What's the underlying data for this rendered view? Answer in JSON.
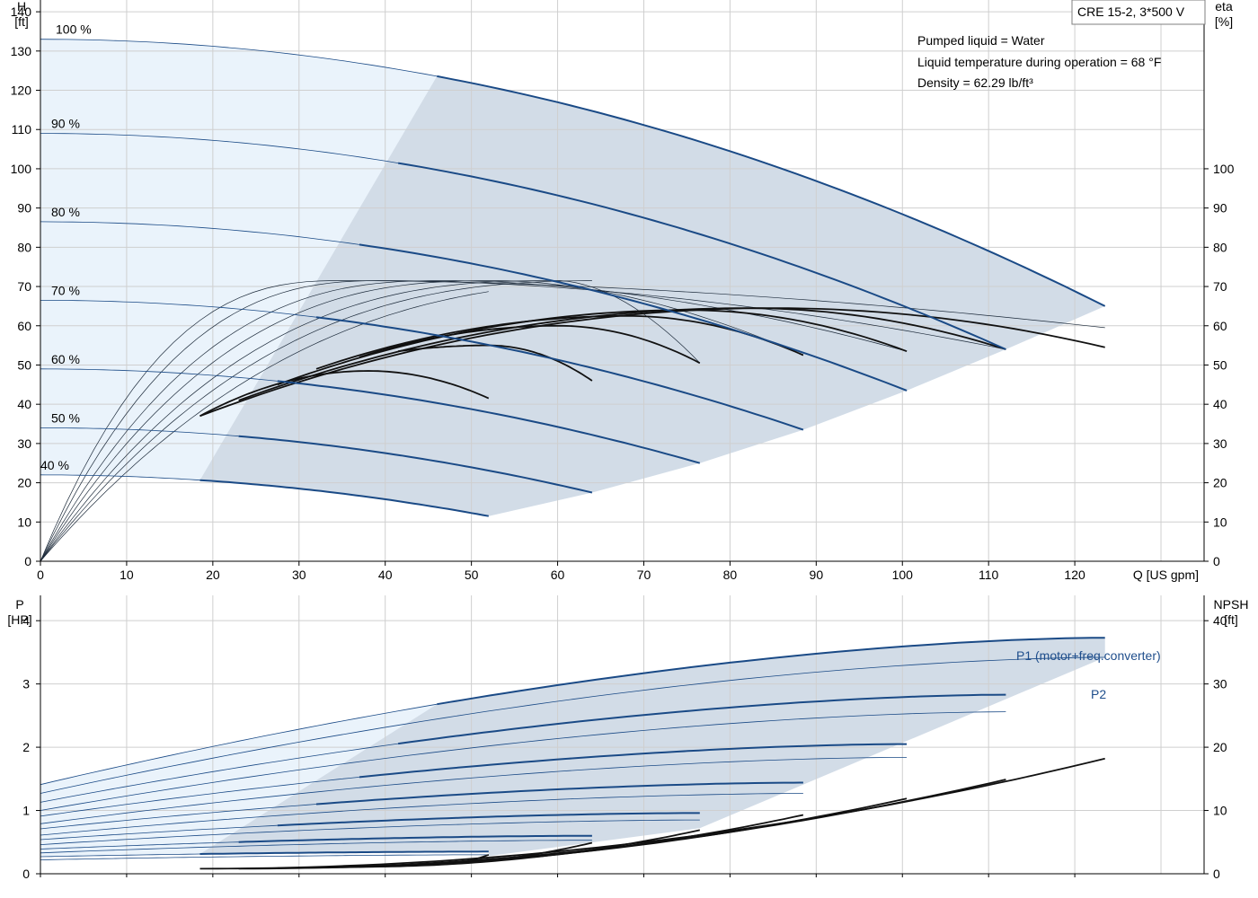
{
  "colors": {
    "grid": "#cfcfcf",
    "axis": "#000000",
    "blue": "#1a4a86",
    "area_dark": "#d2dce7",
    "area_light": "#eaf3fb",
    "thin": "#1c2a3a"
  },
  "title_box": "CRE 15-2, 3*500 V",
  "info": [
    "Pumped liquid = Water",
    "Liquid temperature during operation = 68 °F",
    "Density = 62.29 lb/ft³"
  ],
  "chart_data": [
    {
      "type": "line",
      "name": "head-efficiency",
      "x_axis": {
        "label": "Q [US gpm]",
        "range": [
          0,
          135
        ],
        "ticks": [
          0,
          10,
          20,
          30,
          40,
          50,
          60,
          70,
          80,
          90,
          100,
          110,
          120
        ],
        "grid": true
      },
      "y_left": {
        "label_line1": "H",
        "label_line2": "[ft]",
        "range": [
          0,
          143
        ],
        "ticks": [
          0,
          10,
          20,
          30,
          40,
          50,
          60,
          70,
          80,
          90,
          100,
          110,
          120,
          130,
          140
        ]
      },
      "y_right": {
        "label_line1": "eta",
        "label_line2": "[%]",
        "range": [
          0,
          143
        ],
        "ticks": [
          0,
          10,
          20,
          30,
          40,
          50,
          60,
          70,
          80,
          90,
          100
        ]
      },
      "speed_curves": [
        {
          "label": "100 %",
          "h0": 133,
          "qmax": 123.5,
          "hend": 65,
          "qstart": 46
        },
        {
          "label": "90 %",
          "h0": 109,
          "qmax": 112,
          "hend": 54,
          "qstart": 41.5
        },
        {
          "label": "80 %",
          "h0": 86.5,
          "qmax": 100.5,
          "hend": 43.5,
          "qstart": 37
        },
        {
          "label": "70 %",
          "h0": 66.5,
          "qmax": 88.5,
          "hend": 33.5,
          "qstart": 32
        },
        {
          "label": "60 %",
          "h0": 49,
          "qmax": 76.5,
          "hend": 25,
          "qstart": 27.5
        },
        {
          "label": "50 %",
          "h0": 34,
          "qmax": 64,
          "hend": 17.5,
          "qstart": 23
        },
        {
          "label": "40 %",
          "h0": 22,
          "qmax": 52,
          "hend": 11.5,
          "qstart": 18.5
        }
      ],
      "efficiency_curves": [
        {
          "qpeak": 35,
          "eta_peak": 71.5,
          "qend": 123.5,
          "eta_end": 59.5,
          "qbold": 123.5,
          "eta_bold_end": 54.5
        },
        {
          "qpeak": 40,
          "eta_peak": 71.5,
          "qend": 112,
          "eta_end": 54,
          "qbold": 112,
          "eta_bold_end": 54
        },
        {
          "qpeak": 47,
          "eta_peak": 71.5,
          "qend": 100.5,
          "eta_end": 53.5,
          "qbold": 100.5,
          "eta_bold_end": 53.5
        },
        {
          "qpeak": 53,
          "eta_peak": 71.5,
          "qend": 88.5,
          "eta_end": 52.5,
          "qbold": 88.5,
          "eta_bold_end": 52.5
        },
        {
          "qpeak": 60,
          "eta_peak": 71.5,
          "qend": 76.5,
          "eta_end": 50.5,
          "qbold": 76.5,
          "eta_bold_end": 50.5
        },
        {
          "qpeak": 66,
          "eta_peak": 71.5,
          "qend": 64,
          "eta_end": 46,
          "qbold": 64,
          "eta_bold_end": 46
        },
        {
          "qpeak": 73,
          "eta_peak": 71.5,
          "qend": 52,
          "eta_end": 41.5,
          "qbold": 52,
          "eta_bold_end": 41.5
        }
      ]
    },
    {
      "type": "line",
      "name": "power-npsh",
      "x_axis": {
        "range": [
          0,
          135
        ],
        "ticks": [
          0,
          10,
          20,
          30,
          40,
          50,
          60,
          70,
          80,
          90,
          100,
          110,
          120
        ],
        "grid": true
      },
      "y_left": {
        "label_line1": "P",
        "label_line2": "[HP]",
        "range": [
          0,
          4.4
        ],
        "ticks": [
          0,
          1,
          2,
          3,
          4
        ]
      },
      "y_right": {
        "label_line1": "NPSH",
        "label_line2": "[ft]",
        "range": [
          0,
          44
        ],
        "ticks": [
          0,
          10,
          20,
          30,
          40
        ]
      },
      "series_labels": [
        "P1 (motor+freq.converter)",
        "P2"
      ],
      "p1_curves": [
        {
          "p0": 1.41,
          "pend": 3.73,
          "qmax": 123.5,
          "qstart": 46
        },
        {
          "p0": 1.13,
          "pend": 2.83,
          "qmax": 112,
          "qstart": 41.5
        },
        {
          "p0": 0.91,
          "pend": 2.05,
          "qmax": 100.5,
          "qstart": 37
        },
        {
          "p0": 0.71,
          "pend": 1.44,
          "qmax": 88.5,
          "qstart": 32
        },
        {
          "p0": 0.54,
          "pend": 0.96,
          "qmax": 76.5,
          "qstart": 27.5
        },
        {
          "p0": 0.39,
          "pend": 0.6,
          "qmax": 64,
          "qstart": 23
        },
        {
          "p0": 0.27,
          "pend": 0.35,
          "qmax": 52,
          "qstart": 18.5
        }
      ],
      "p2_curves": [
        {
          "p0": 1.27,
          "pend": 3.42,
          "qmax": 123.5
        },
        {
          "p0": 1.0,
          "pend": 2.56,
          "qmax": 112
        },
        {
          "p0": 0.79,
          "pend": 1.84,
          "qmax": 100.5
        },
        {
          "p0": 0.61,
          "pend": 1.27,
          "qmax": 88.5
        },
        {
          "p0": 0.46,
          "pend": 0.85,
          "qmax": 76.5
        },
        {
          "p0": 0.33,
          "pend": 0.53,
          "qmax": 64
        },
        {
          "p0": 0.22,
          "pend": 0.3,
          "qmax": 52
        }
      ],
      "npsh_curves": [
        {
          "qstart": 18.5,
          "n0": 0.8,
          "qend": 123.5,
          "nend": 18.2
        },
        {
          "qstart": 23,
          "n0": 0.8,
          "qend": 112,
          "nend": 14.9
        },
        {
          "qstart": 27.5,
          "n0": 0.9,
          "qend": 100.5,
          "nend": 11.9
        },
        {
          "qstart": 32,
          "n0": 1.0,
          "qend": 88.5,
          "nend": 9.3
        },
        {
          "qstart": 37,
          "n0": 1.1,
          "qend": 76.5,
          "nend": 6.9
        },
        {
          "qstart": 41.5,
          "n0": 1.3,
          "qend": 64,
          "nend": 4.9
        },
        {
          "qstart": 46,
          "n0": 1.5,
          "qend": 52,
          "nend": 3.0
        }
      ]
    }
  ]
}
